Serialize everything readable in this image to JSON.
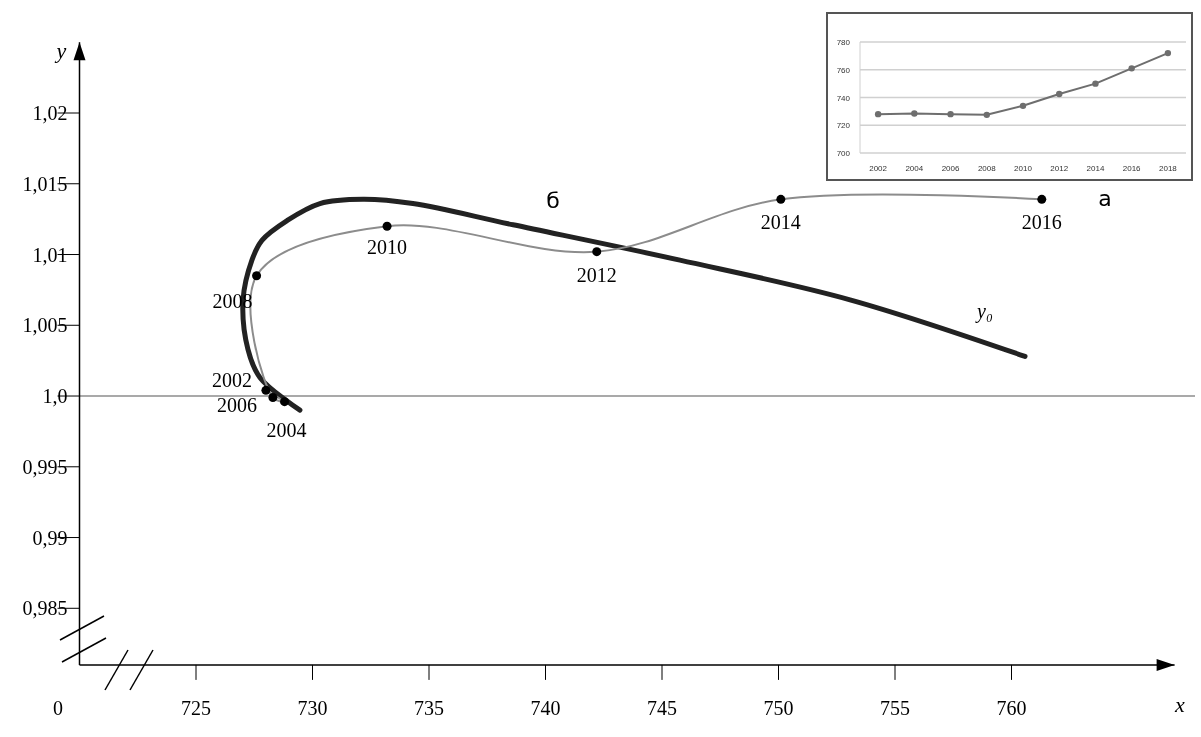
{
  "chart_data": [
    {
      "type": "line",
      "xlabel": "x",
      "ylabel": "y",
      "xlim": [
        720,
        767
      ],
      "ylim": [
        0.981,
        1.025
      ],
      "xticks": [
        725,
        730,
        735,
        740,
        745,
        750,
        755,
        760
      ],
      "yticks": [
        {
          "value": 0.985,
          "label": "0,985"
        },
        {
          "value": 0.99,
          "label": "0,99"
        },
        {
          "value": 0.995,
          "label": "0,995"
        },
        {
          "value": 1,
          "label": "1,0"
        },
        {
          "value": 1.005,
          "label": "1,005"
        },
        {
          "value": 1.01,
          "label": "1,01"
        },
        {
          "value": 1.015,
          "label": "1,015"
        },
        {
          "value": 1.02,
          "label": "1,02"
        }
      ],
      "grid": false,
      "ref_lines": [
        {
          "axis": "y",
          "value": 1,
          "color": "#8c8c8c"
        }
      ],
      "series": [
        {
          "color": "#8c8c8c",
          "marker": "circle",
          "x": [
            728.0,
            728.8,
            728.3,
            727.6,
            733.2,
            742.2,
            750.1,
            761.3
          ],
          "values": [
            1.0004,
            0.9996,
            0.9999,
            1.0085,
            1.012,
            1.0102,
            1.0139,
            1.0139
          ]
        },
        {
          "color": "#222222",
          "marker": "none",
          "x": [
            729.46,
            727.75,
            727.23,
            727.02,
            727.4,
            727.83,
            728.91,
            730.32,
            732.17,
            734.31,
            738.61,
            745.77,
            753.07,
            760.58
          ],
          "values": [
            0.999,
            1.0013,
            1.0033,
            1.0068,
            1.0096,
            1.011,
            1.0124,
            1.0136,
            1.0139,
            1.0136,
            1.0121,
            1.0096,
            1.0068,
            1.0028
          ]
        }
      ],
      "annotations": [
        {
          "text": "2002",
          "x": 728.0,
          "y": 1.0004
        },
        {
          "text": "2004",
          "x": 728.8,
          "y": 0.9996
        },
        {
          "text": "2006",
          "x": 728.3,
          "y": 0.9999
        },
        {
          "text": "2008",
          "x": 727.6,
          "y": 1.0085
        },
        {
          "text": "2010",
          "x": 733.2,
          "y": 1.012
        },
        {
          "text": "2012",
          "x": 742.2,
          "y": 1.0102
        },
        {
          "text": "2014",
          "x": 750.1,
          "y": 1.0139
        },
        {
          "text": "2016",
          "x": 761.3,
          "y": 1.0139
        },
        "а",
        "б",
        "y₀",
        "0"
      ]
    },
    {
      "type": "line",
      "categories": [
        "2002",
        "2004",
        "2006",
        "2008",
        "2010",
        "2012",
        "2014",
        "2016",
        "2018"
      ],
      "ylim": [
        700,
        780
      ],
      "yticks": [
        700,
        720,
        740,
        760,
        780
      ],
      "grid": "y",
      "marker": "circle",
      "series": [
        {
          "color": "#6e6e6e",
          "values": [
            728,
            728.5,
            728,
            727.5,
            734,
            742.5,
            750,
            761,
            772
          ]
        }
      ]
    }
  ]
}
